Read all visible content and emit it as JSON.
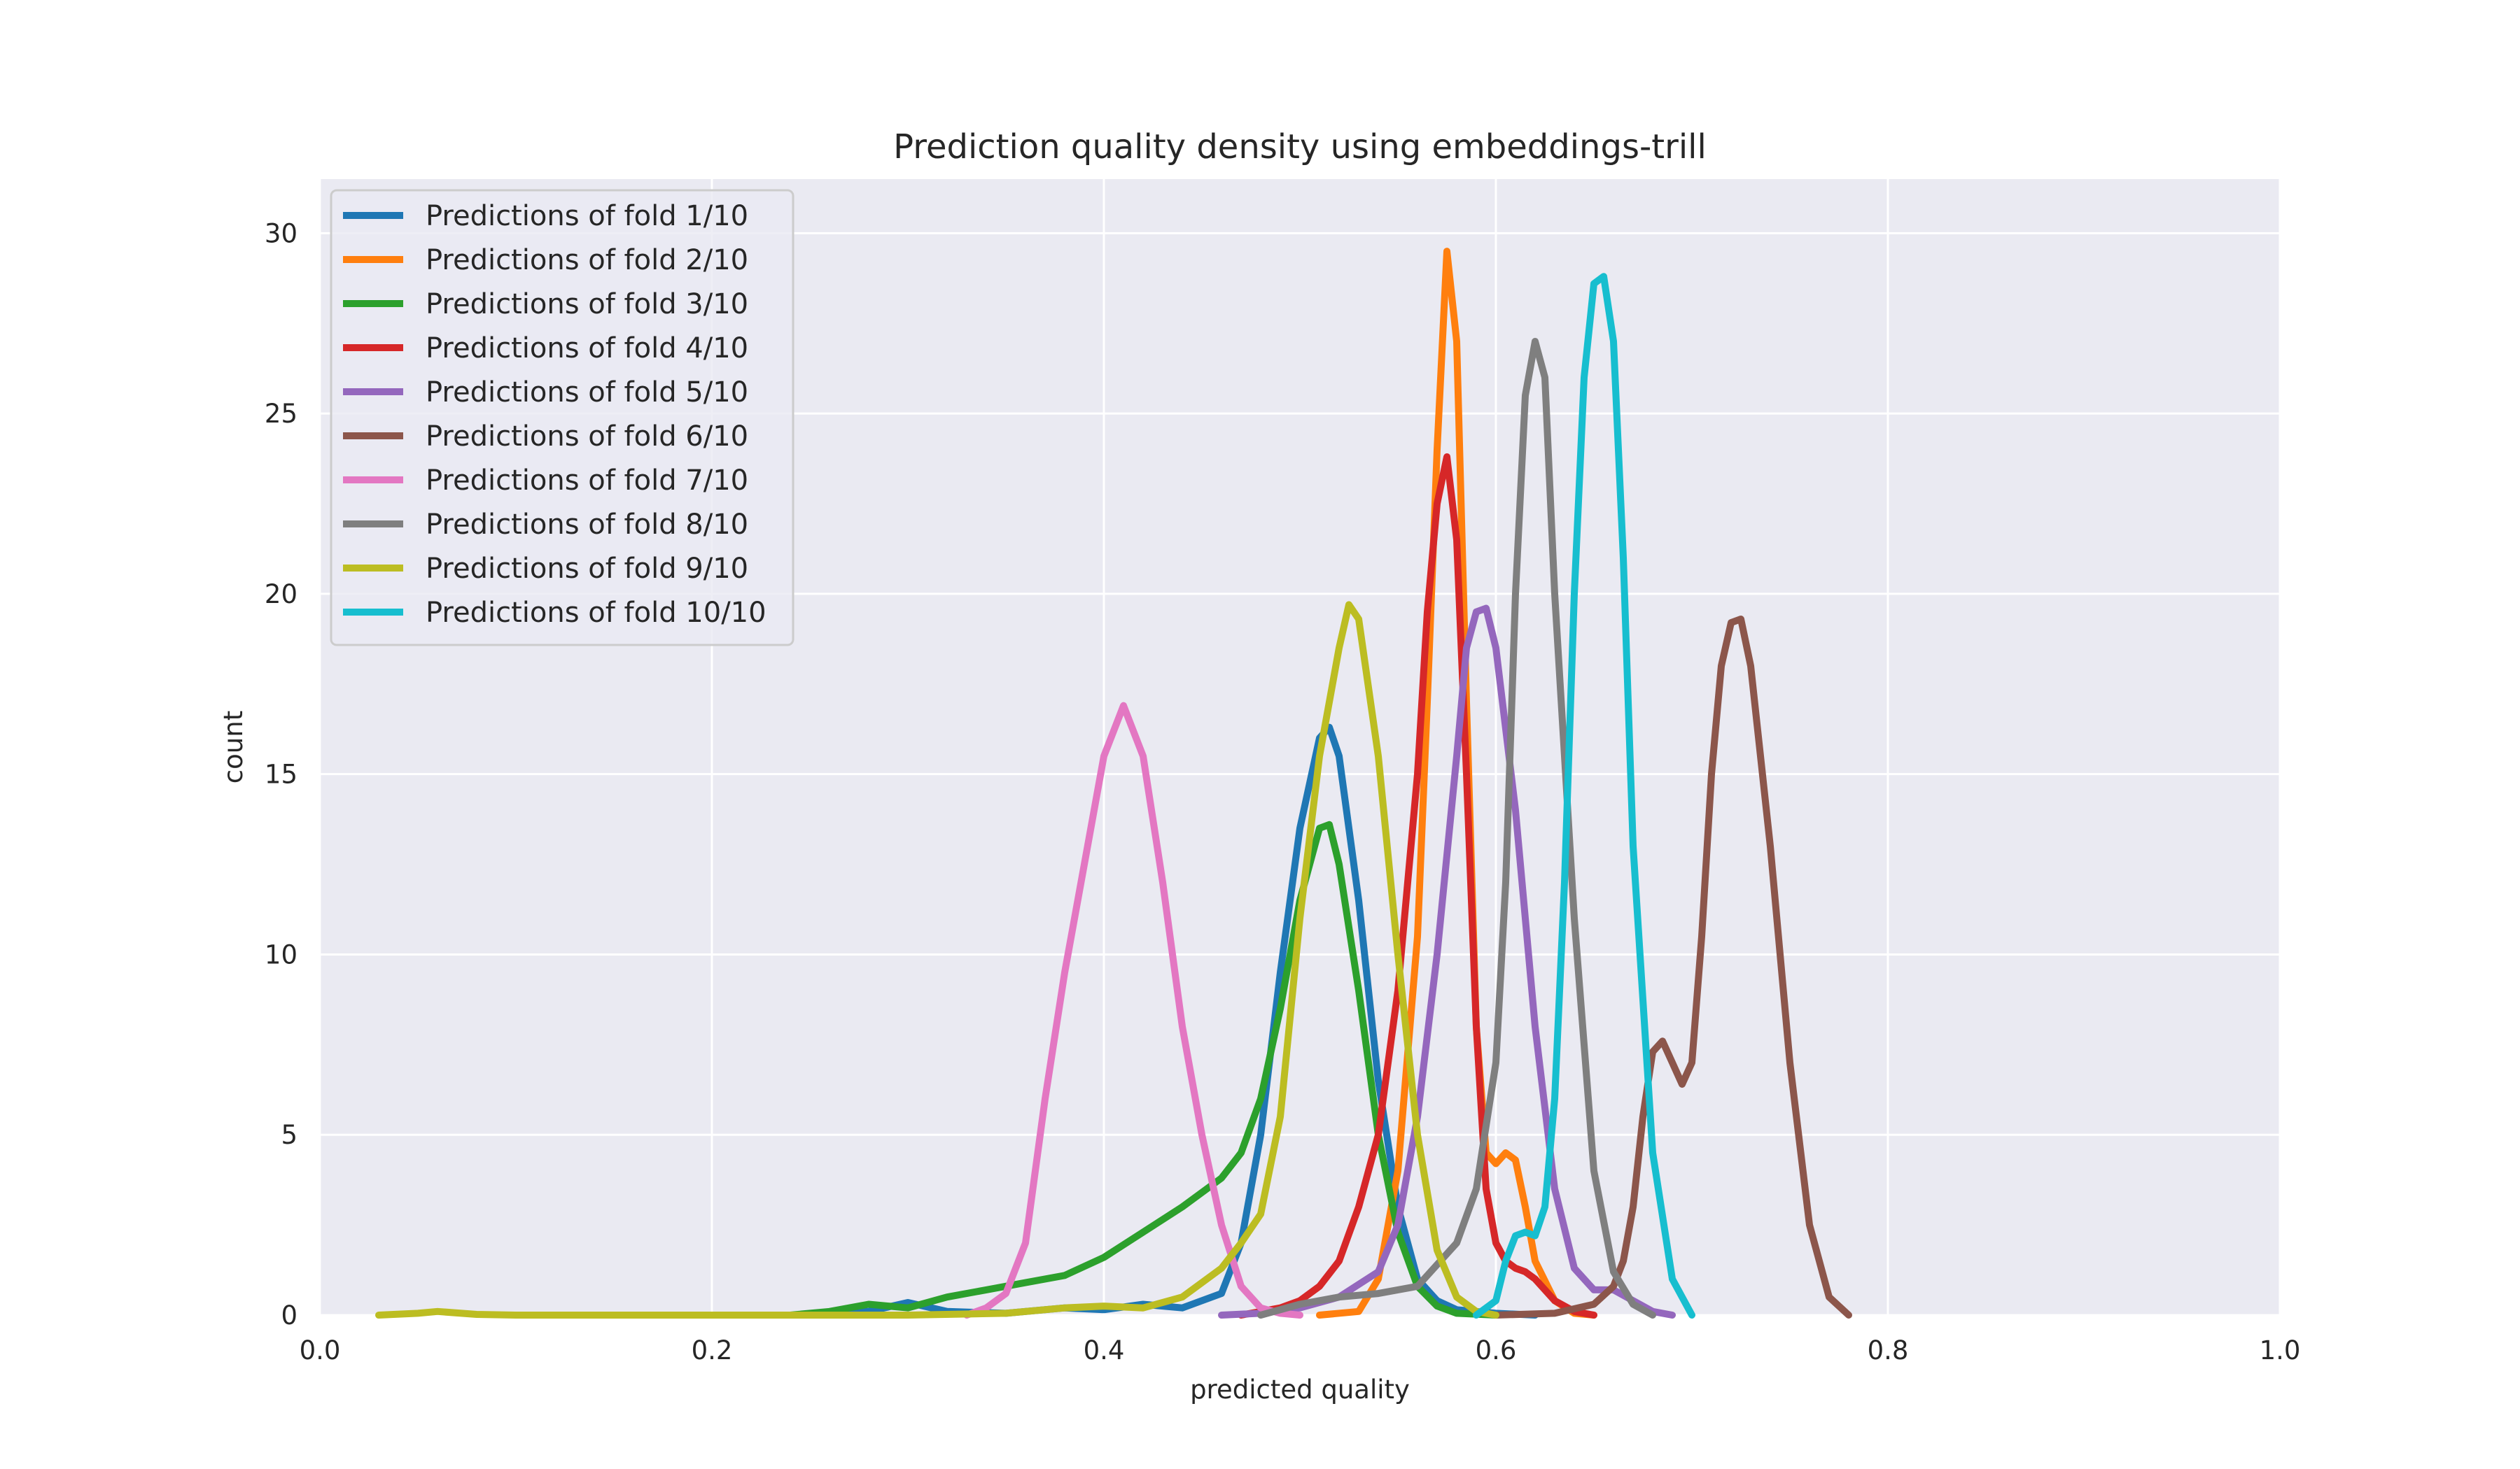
{
  "chart_data": {
    "type": "line",
    "title": "Prediction quality density using embeddings-trill",
    "xlabel": "predicted quality",
    "ylabel": "count",
    "xlim": [
      0.0,
      1.0
    ],
    "ylim": [
      0,
      31.5
    ],
    "xticks": [
      0.0,
      0.2,
      0.4,
      0.6,
      0.8,
      1.0
    ],
    "xtick_labels": [
      "0.0",
      "0.2",
      "0.4",
      "0.6",
      "0.8",
      "1.0"
    ],
    "yticks": [
      0,
      5,
      10,
      15,
      20,
      25,
      30
    ],
    "ytick_labels": [
      "0",
      "5",
      "10",
      "15",
      "20",
      "25",
      "30"
    ],
    "grid": true,
    "legend_position": "top-left",
    "series": [
      {
        "name": "Predictions of fold 1/10",
        "color": "#1f77b4",
        "points": [
          [
            0.25,
            0
          ],
          [
            0.28,
            0.1
          ],
          [
            0.3,
            0.35
          ],
          [
            0.32,
            0.1
          ],
          [
            0.35,
            0.05
          ],
          [
            0.38,
            0.2
          ],
          [
            0.4,
            0.15
          ],
          [
            0.42,
            0.3
          ],
          [
            0.44,
            0.2
          ],
          [
            0.46,
            0.6
          ],
          [
            0.47,
            2.0
          ],
          [
            0.48,
            5.0
          ],
          [
            0.49,
            9.5
          ],
          [
            0.5,
            13.5
          ],
          [
            0.51,
            16.0
          ],
          [
            0.515,
            16.3
          ],
          [
            0.52,
            15.5
          ],
          [
            0.53,
            11.5
          ],
          [
            0.54,
            6.5
          ],
          [
            0.55,
            3.0
          ],
          [
            0.56,
            1.0
          ],
          [
            0.57,
            0.4
          ],
          [
            0.58,
            0.15
          ],
          [
            0.6,
            0.05
          ],
          [
            0.62,
            0
          ]
        ]
      },
      {
        "name": "Predictions of fold 2/10",
        "color": "#ff7f0e",
        "points": [
          [
            0.51,
            0
          ],
          [
            0.53,
            0.1
          ],
          [
            0.54,
            1.0
          ],
          [
            0.55,
            4.0
          ],
          [
            0.56,
            10.5
          ],
          [
            0.565,
            17.0
          ],
          [
            0.57,
            24.0
          ],
          [
            0.575,
            29.5
          ],
          [
            0.58,
            27.0
          ],
          [
            0.585,
            17.0
          ],
          [
            0.59,
            8.0
          ],
          [
            0.595,
            4.5
          ],
          [
            0.6,
            4.2
          ],
          [
            0.605,
            4.5
          ],
          [
            0.61,
            4.3
          ],
          [
            0.615,
            3.0
          ],
          [
            0.62,
            1.5
          ],
          [
            0.63,
            0.4
          ],
          [
            0.64,
            0.05
          ],
          [
            0.65,
            0
          ]
        ]
      },
      {
        "name": "Predictions of fold 3/10",
        "color": "#2ca02c",
        "points": [
          [
            0.24,
            0
          ],
          [
            0.26,
            0.1
          ],
          [
            0.28,
            0.3
          ],
          [
            0.3,
            0.2
          ],
          [
            0.32,
            0.5
          ],
          [
            0.34,
            0.7
          ],
          [
            0.36,
            0.9
          ],
          [
            0.38,
            1.1
          ],
          [
            0.4,
            1.6
          ],
          [
            0.42,
            2.3
          ],
          [
            0.44,
            3.0
          ],
          [
            0.46,
            3.8
          ],
          [
            0.47,
            4.5
          ],
          [
            0.48,
            6.0
          ],
          [
            0.49,
            8.5
          ],
          [
            0.5,
            11.5
          ],
          [
            0.51,
            13.5
          ],
          [
            0.515,
            13.6
          ],
          [
            0.52,
            12.5
          ],
          [
            0.53,
            9.0
          ],
          [
            0.54,
            5.0
          ],
          [
            0.55,
            2.3
          ],
          [
            0.56,
            0.8
          ],
          [
            0.57,
            0.25
          ],
          [
            0.58,
            0.05
          ],
          [
            0.6,
            0
          ]
        ]
      },
      {
        "name": "Predictions of fold 4/10",
        "color": "#d62728",
        "points": [
          [
            0.47,
            0
          ],
          [
            0.49,
            0.2
          ],
          [
            0.5,
            0.4
          ],
          [
            0.51,
            0.8
          ],
          [
            0.52,
            1.5
          ],
          [
            0.53,
            3.0
          ],
          [
            0.54,
            5.0
          ],
          [
            0.55,
            9.0
          ],
          [
            0.56,
            15.0
          ],
          [
            0.565,
            19.5
          ],
          [
            0.57,
            22.5
          ],
          [
            0.575,
            23.8
          ],
          [
            0.58,
            21.5
          ],
          [
            0.585,
            15.0
          ],
          [
            0.59,
            8.0
          ],
          [
            0.595,
            3.5
          ],
          [
            0.6,
            2.0
          ],
          [
            0.605,
            1.5
          ],
          [
            0.61,
            1.3
          ],
          [
            0.615,
            1.2
          ],
          [
            0.62,
            1.0
          ],
          [
            0.63,
            0.4
          ],
          [
            0.64,
            0.1
          ],
          [
            0.65,
            0
          ]
        ]
      },
      {
        "name": "Predictions of fold 5/10",
        "color": "#9467bd",
        "points": [
          [
            0.46,
            0
          ],
          [
            0.48,
            0.05
          ],
          [
            0.5,
            0.2
          ],
          [
            0.52,
            0.5
          ],
          [
            0.54,
            1.2
          ],
          [
            0.55,
            2.5
          ],
          [
            0.56,
            5.5
          ],
          [
            0.57,
            10.0
          ],
          [
            0.58,
            15.5
          ],
          [
            0.585,
            18.5
          ],
          [
            0.59,
            19.5
          ],
          [
            0.595,
            19.6
          ],
          [
            0.6,
            18.5
          ],
          [
            0.61,
            14.0
          ],
          [
            0.62,
            8.0
          ],
          [
            0.63,
            3.5
          ],
          [
            0.64,
            1.3
          ],
          [
            0.65,
            0.7
          ],
          [
            0.66,
            0.7
          ],
          [
            0.67,
            0.4
          ],
          [
            0.68,
            0.1
          ],
          [
            0.69,
            0
          ]
        ]
      },
      {
        "name": "Predictions of fold 6/10",
        "color": "#8c564b",
        "points": [
          [
            0.6,
            0
          ],
          [
            0.63,
            0.05
          ],
          [
            0.65,
            0.3
          ],
          [
            0.66,
            0.8
          ],
          [
            0.665,
            1.5
          ],
          [
            0.67,
            3.0
          ],
          [
            0.675,
            5.5
          ],
          [
            0.68,
            7.3
          ],
          [
            0.685,
            7.6
          ],
          [
            0.69,
            7.0
          ],
          [
            0.695,
            6.4
          ],
          [
            0.7,
            7.0
          ],
          [
            0.705,
            10.5
          ],
          [
            0.71,
            15.0
          ],
          [
            0.715,
            18.0
          ],
          [
            0.72,
            19.2
          ],
          [
            0.725,
            19.3
          ],
          [
            0.73,
            18.0
          ],
          [
            0.74,
            13.0
          ],
          [
            0.75,
            7.0
          ],
          [
            0.76,
            2.5
          ],
          [
            0.77,
            0.5
          ],
          [
            0.78,
            0
          ]
        ]
      },
      {
        "name": "Predictions of fold 7/10",
        "color": "#e377c2",
        "points": [
          [
            0.33,
            0
          ],
          [
            0.34,
            0.2
          ],
          [
            0.35,
            0.6
          ],
          [
            0.36,
            2.0
          ],
          [
            0.37,
            6.0
          ],
          [
            0.38,
            9.5
          ],
          [
            0.39,
            12.5
          ],
          [
            0.4,
            15.5
          ],
          [
            0.41,
            16.9
          ],
          [
            0.42,
            15.5
          ],
          [
            0.43,
            12.0
          ],
          [
            0.44,
            8.0
          ],
          [
            0.45,
            5.0
          ],
          [
            0.46,
            2.5
          ],
          [
            0.47,
            0.8
          ],
          [
            0.48,
            0.2
          ],
          [
            0.49,
            0.05
          ],
          [
            0.5,
            0
          ]
        ]
      },
      {
        "name": "Predictions of fold 8/10",
        "color": "#7f7f7f",
        "points": [
          [
            0.48,
            0
          ],
          [
            0.5,
            0.3
          ],
          [
            0.52,
            0.5
          ],
          [
            0.54,
            0.6
          ],
          [
            0.56,
            0.8
          ],
          [
            0.58,
            2.0
          ],
          [
            0.59,
            3.5
          ],
          [
            0.6,
            7.0
          ],
          [
            0.605,
            12.0
          ],
          [
            0.61,
            20.0
          ],
          [
            0.615,
            25.5
          ],
          [
            0.62,
            27.0
          ],
          [
            0.625,
            26.0
          ],
          [
            0.63,
            20.0
          ],
          [
            0.64,
            11.0
          ],
          [
            0.65,
            4.0
          ],
          [
            0.66,
            1.2
          ],
          [
            0.67,
            0.3
          ],
          [
            0.68,
            0
          ]
        ]
      },
      {
        "name": "Predictions of fold 9/10",
        "color": "#bcbd22",
        "points": [
          [
            0.03,
            0
          ],
          [
            0.05,
            0.05
          ],
          [
            0.06,
            0.1
          ],
          [
            0.08,
            0.02
          ],
          [
            0.1,
            0
          ],
          [
            0.3,
            0
          ],
          [
            0.35,
            0.05
          ],
          [
            0.38,
            0.2
          ],
          [
            0.4,
            0.25
          ],
          [
            0.42,
            0.2
          ],
          [
            0.44,
            0.5
          ],
          [
            0.46,
            1.3
          ],
          [
            0.47,
            2.0
          ],
          [
            0.48,
            2.8
          ],
          [
            0.49,
            5.5
          ],
          [
            0.5,
            11.0
          ],
          [
            0.51,
            15.5
          ],
          [
            0.52,
            18.5
          ],
          [
            0.525,
            19.7
          ],
          [
            0.53,
            19.3
          ],
          [
            0.54,
            15.5
          ],
          [
            0.55,
            10.0
          ],
          [
            0.56,
            5.0
          ],
          [
            0.57,
            1.8
          ],
          [
            0.58,
            0.5
          ],
          [
            0.59,
            0.1
          ],
          [
            0.6,
            0
          ]
        ]
      },
      {
        "name": "Predictions of fold 10/10",
        "color": "#17becf",
        "points": [
          [
            0.59,
            0
          ],
          [
            0.6,
            0.4
          ],
          [
            0.605,
            1.5
          ],
          [
            0.61,
            2.2
          ],
          [
            0.615,
            2.3
          ],
          [
            0.62,
            2.2
          ],
          [
            0.625,
            3.0
          ],
          [
            0.63,
            6.0
          ],
          [
            0.635,
            12.0
          ],
          [
            0.64,
            20.0
          ],
          [
            0.645,
            26.0
          ],
          [
            0.65,
            28.6
          ],
          [
            0.655,
            28.8
          ],
          [
            0.66,
            27.0
          ],
          [
            0.665,
            21.0
          ],
          [
            0.67,
            13.0
          ],
          [
            0.68,
            4.5
          ],
          [
            0.69,
            1.0
          ],
          [
            0.7,
            0
          ]
        ]
      }
    ]
  }
}
